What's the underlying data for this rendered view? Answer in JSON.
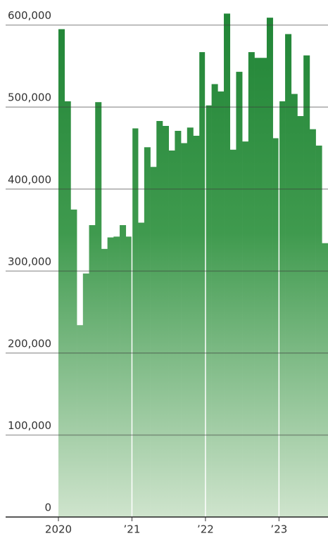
{
  "chart_data": {
    "type": "bar",
    "categories": [
      "2020",
      null,
      null,
      null,
      null,
      null,
      null,
      null,
      null,
      null,
      null,
      null,
      "’21",
      null,
      null,
      null,
      null,
      null,
      null,
      null,
      null,
      null,
      null,
      null,
      "’22",
      null,
      null,
      null,
      null,
      null,
      null,
      null,
      null,
      null,
      null,
      null,
      "’23",
      null,
      null,
      null,
      null,
      null,
      null,
      null
    ],
    "values": [
      595000,
      507000,
      375000,
      234000,
      297000,
      356000,
      506000,
      327000,
      341000,
      342000,
      356000,
      342000,
      474000,
      359000,
      451000,
      427000,
      483000,
      477000,
      447000,
      471000,
      456000,
      475000,
      465000,
      567000,
      502000,
      528000,
      519000,
      614000,
      448000,
      543000,
      458000,
      567000,
      560000,
      560000,
      609000,
      462000,
      507000,
      589000,
      516000,
      489000,
      563000,
      473000,
      453000,
      334000
    ],
    "color": "#24873a",
    "ylim": [
      0,
      628000
    ],
    "yticks": [
      0,
      {
        "value": 100000,
        "label": "100,000"
      },
      {
        "value": 200000,
        "label": "200,000"
      },
      {
        "value": 300000,
        "label": "300,000"
      },
      {
        "value": 400000,
        "label": "400,000"
      },
      {
        "value": 500000,
        "label": "500,000"
      },
      {
        "value": 600000,
        "label": "600,000"
      }
    ],
    "grid": true
  }
}
